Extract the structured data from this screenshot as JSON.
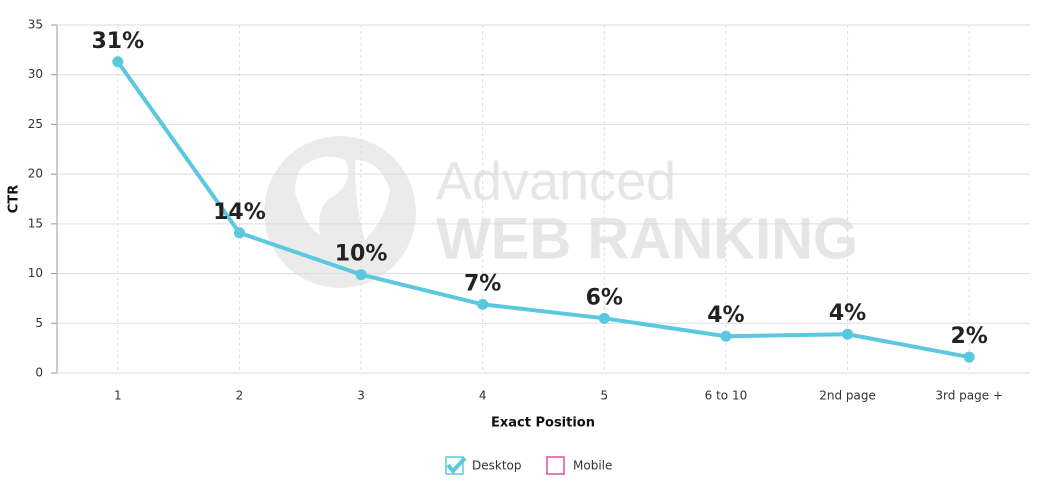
{
  "chart_data": {
    "type": "line",
    "y_label": "CTR",
    "x_label": "Exact Position",
    "watermark": [
      "Advanced",
      "WEB RANKING"
    ],
    "categories": [
      "1",
      "2",
      "3",
      "4",
      "5",
      "6 to 10",
      "2nd page",
      "3rd page +"
    ],
    "series": [
      {
        "name": "Desktop",
        "color": "#5bc8e0",
        "visible": true,
        "values": [
          31.3,
          14.1,
          9.9,
          6.9,
          5.5,
          3.7,
          3.9,
          1.6
        ],
        "value_labels": [
          "31%",
          "14%",
          "10%",
          "7%",
          "6%",
          "4%",
          "4%",
          "2%"
        ]
      },
      {
        "name": "Mobile",
        "color": "#e0509a",
        "visible": false,
        "values": [
          null,
          null,
          null,
          null,
          null,
          null,
          null,
          null
        ]
      }
    ],
    "ylim": [
      0,
      35
    ],
    "yticks": [
      0,
      5,
      10,
      15,
      20,
      25,
      30,
      35
    ],
    "grid": true
  }
}
